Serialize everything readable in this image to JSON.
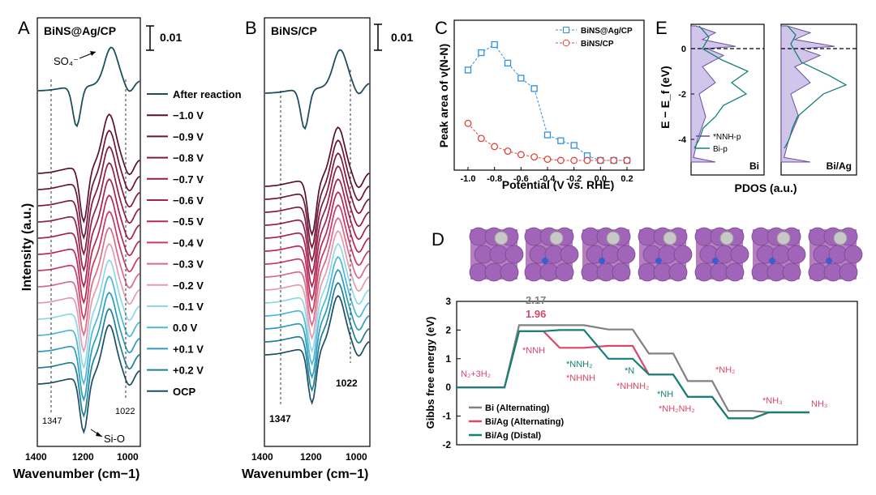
{
  "panel_labels": {
    "A": "A",
    "B": "B",
    "C": "C",
    "D": "D",
    "E": "E"
  },
  "colors": {
    "after": "#1f4e5f",
    "dark1": "#5a0f2e",
    "dark2": "#6e1436",
    "dark3": "#83183f",
    "dark4": "#951c48",
    "mid1": "#a8204f",
    "mid2": "#bb2656",
    "mid3": "#c93a66",
    "light1": "#d86b88",
    "light2": "#e69aae",
    "cyan1": "#8ed7ea",
    "cyan2": "#4cb8d6",
    "cyan3": "#2a9cc0",
    "teal1": "#1f7f96",
    "ocp": "#1b4f63",
    "blue_sq": "#2e90e0",
    "red_circ": "#e0443b",
    "gray": "#808080",
    "pink": "#d9476a",
    "teal": "#138079",
    "purple": "#6a4ca3"
  },
  "chart_data": [
    {
      "id": "A",
      "type": "line",
      "title": "BiNS@Ag/CP",
      "xlabel": "Wavenumber (cm−1)",
      "ylabel": "Intensity (a.u.)",
      "xlim": [
        1400,
        950
      ],
      "xticks": [
        "1400",
        "1200",
        "1000"
      ],
      "scale_bar": "0.01",
      "annotations": {
        "so4": "SO₄⁻",
        "sio": "Si-O",
        "w1347": "1347",
        "w1022": "1022"
      },
      "legend": [
        "After reaction",
        "−1.0 V",
        "−0.9 V",
        "−0.8 V",
        "−0.7 V",
        "−0.6 V",
        "−0.5 V",
        "−0.4 V",
        "−0.3 V",
        "−0.2 V",
        "−0.1 V",
        "0.0 V",
        "+0.1 V",
        "+0.2 V",
        "OCP"
      ]
    },
    {
      "id": "B",
      "type": "line",
      "title": "BiNS/CP",
      "xlabel": "Wavenumber (cm−1)",
      "ylabel": "",
      "xlim": [
        1400,
        950
      ],
      "xticks": [
        "1400",
        "1200",
        "1000"
      ],
      "scale_bar": "0.01",
      "annotations": {
        "w1347": "1347",
        "w1022": "1022"
      }
    },
    {
      "id": "C",
      "type": "scatter",
      "xlabel": "Potential (V vs. RHE)",
      "ylabel": "Peak area of ν(N-N)",
      "xlim": [
        -1.05,
        0.25
      ],
      "xticks": [
        "-1.0",
        "-0.8",
        "-0.6",
        "-0.4",
        "-0.2",
        "0.0",
        "0.2"
      ],
      "x": [
        -1.0,
        -0.9,
        -0.8,
        -0.7,
        -0.6,
        -0.5,
        -0.4,
        -0.3,
        -0.2,
        -0.1,
        0.0,
        0.1,
        0.2
      ],
      "series": [
        {
          "name": "BiNS@Ag/CP",
          "values": [
            0.78,
            0.93,
            1.0,
            0.84,
            0.71,
            0.62,
            0.22,
            0.17,
            0.13,
            0.04,
            0.0,
            0.0,
            0.0
          ]
        },
        {
          "name": "BiNS/CP",
          "values": [
            0.32,
            0.19,
            0.12,
            0.08,
            0.05,
            0.03,
            0.01,
            0.0,
            0.0,
            0.0,
            0.0,
            0.0,
            0.0
          ]
        }
      ]
    },
    {
      "id": "D",
      "type": "line",
      "ylabel": "Gibbs free energy (eV)",
      "ylim": [
        -2,
        3
      ],
      "yticks": [
        "3",
        "2",
        "1",
        "0",
        "-1",
        "-2"
      ],
      "barriers": {
        "bi": "2.17",
        "biag": "1.96"
      },
      "species": {
        "n2": "N₂+3H₂",
        "nnh": "*NNH",
        "nnh2": "*NNH₂",
        "nhnh": "*NHNH",
        "n": "*N",
        "nhnh2": "*NHNH₂",
        "nh2": "*NH₂",
        "nh": "*NH",
        "nh2nh2": "*NH₂NH₂",
        "nh3ads": "*NH₃",
        "nh3": "NH₃"
      },
      "series": [
        {
          "name": "Bi (Alternating)",
          "values": [
            0.0,
            2.17,
            2.17,
            2.02,
            1.18,
            0.22,
            -0.82,
            -0.87
          ]
        },
        {
          "name": "Bi/Ag (Alternating)",
          "values": [
            0.0,
            1.96,
            1.38,
            1.45,
            0.45,
            -0.33,
            -1.08,
            -0.87
          ]
        },
        {
          "name": "Bi/Ag (Distal)",
          "values": [
            0.0,
            1.96,
            2.0,
            1.0,
            0.45,
            -0.33,
            -1.08,
            -0.87
          ]
        }
      ]
    },
    {
      "id": "E",
      "type": "area",
      "xlabel": "PDOS (a.u.)",
      "ylabel": "E − E_f (eV)",
      "ylim": [
        -5,
        1
      ],
      "yticks": [
        "0",
        "-2",
        "-4"
      ],
      "subpanels": [
        "Bi",
        "Bi/Ag"
      ],
      "legend": [
        "*NNH-p",
        "Bi-p"
      ]
    }
  ]
}
